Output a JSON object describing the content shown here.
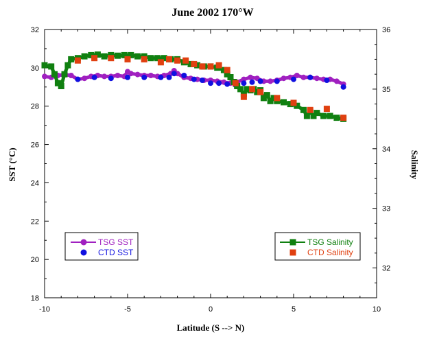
{
  "chart_data": {
    "type": "line",
    "title": "June 2002 170°W",
    "xlabel": "Latitude (S --> N)",
    "ylabel_left": "SST (°C)",
    "ylabel_right": "Salinity",
    "xlim": [
      -10,
      10
    ],
    "ylim_left": [
      18,
      32
    ],
    "ylim_right": [
      31.5,
      36
    ],
    "x_ticks": [
      -10,
      -5,
      0,
      5,
      10
    ],
    "y_left_ticks": [
      18,
      20,
      22,
      24,
      26,
      28,
      30,
      32
    ],
    "y_right_ticks": [
      32,
      33,
      34,
      35,
      36
    ],
    "grid": false,
    "legend_left": {
      "placement": "bottom-left",
      "entries": [
        {
          "label": "TSG SST",
          "color": "#a020c0",
          "marker": "circle",
          "line": true
        },
        {
          "label": "CTD SST",
          "color": "#1010e0",
          "marker": "circle",
          "line": false
        }
      ]
    },
    "legend_right": {
      "placement": "bottom-right",
      "entries": [
        {
          "label": "TSG Salinity",
          "color": "#108010",
          "marker": "square",
          "line": true
        },
        {
          "label": "CTD Salinity",
          "color": "#e04010",
          "marker": "square",
          "line": false
        }
      ]
    },
    "series": [
      {
        "name": "TSG SST",
        "axis": "left",
        "style": "line-markers",
        "marker": "circle",
        "color": "#a020c0",
        "x": [
          -10.0,
          -9.6,
          -9.2,
          -8.8,
          -8.4,
          -8.0,
          -7.6,
          -7.2,
          -6.8,
          -6.4,
          -6.0,
          -5.6,
          -5.2,
          -5.0,
          -4.8,
          -4.4,
          -4.0,
          -3.6,
          -3.2,
          -2.8,
          -2.4,
          -2.2,
          -2.0,
          -1.6,
          -1.2,
          -0.8,
          -0.4,
          0.0,
          0.4,
          0.8,
          1.2,
          1.6,
          2.0,
          2.4,
          2.8,
          3.2,
          3.6,
          4.0,
          4.4,
          4.8,
          5.2,
          5.6,
          6.0,
          6.4,
          6.8,
          7.2,
          7.6,
          8.0
        ],
        "y": [
          29.55,
          29.5,
          29.6,
          29.65,
          29.6,
          29.4,
          29.45,
          29.55,
          29.6,
          29.55,
          29.55,
          29.6,
          29.55,
          29.8,
          29.7,
          29.65,
          29.6,
          29.6,
          29.55,
          29.6,
          29.7,
          29.85,
          29.7,
          29.5,
          29.45,
          29.4,
          29.35,
          29.35,
          29.3,
          29.25,
          29.2,
          29.25,
          29.4,
          29.5,
          29.45,
          29.3,
          29.3,
          29.35,
          29.45,
          29.5,
          29.6,
          29.5,
          29.5,
          29.45,
          29.4,
          29.4,
          29.3,
          29.15
        ]
      },
      {
        "name": "CTD SST",
        "axis": "left",
        "style": "markers",
        "marker": "circle",
        "color": "#1010e0",
        "x": [
          -8.0,
          -7.0,
          -6.0,
          -5.0,
          -4.0,
          -3.0,
          -2.5,
          -2.2,
          -1.6,
          -1.0,
          -0.5,
          0.0,
          0.5,
          1.0,
          1.5,
          2.0,
          2.5,
          3.0,
          4.0,
          5.0,
          6.0,
          7.0,
          8.0
        ],
        "y": [
          29.4,
          29.5,
          29.45,
          29.5,
          29.5,
          29.5,
          29.5,
          29.7,
          29.6,
          29.4,
          29.35,
          29.2,
          29.2,
          29.15,
          29.1,
          29.2,
          29.25,
          29.3,
          29.3,
          29.4,
          29.5,
          29.35,
          29.0
        ]
      },
      {
        "name": "TSG Salinity",
        "axis": "right",
        "style": "line-markers",
        "marker": "square",
        "color": "#108010",
        "x": [
          -10.0,
          -9.6,
          -9.4,
          -9.2,
          -9.0,
          -8.8,
          -8.6,
          -8.4,
          -8.0,
          -7.6,
          -7.2,
          -6.8,
          -6.4,
          -6.0,
          -5.6,
          -5.2,
          -4.8,
          -4.4,
          -4.0,
          -3.6,
          -3.2,
          -2.8,
          -2.4,
          -2.0,
          -1.6,
          -1.2,
          -0.8,
          -0.4,
          0.0,
          0.4,
          0.8,
          1.0,
          1.2,
          1.4,
          1.6,
          1.8,
          2.0,
          2.2,
          2.4,
          2.6,
          2.8,
          3.0,
          3.2,
          3.4,
          3.6,
          3.8,
          4.0,
          4.4,
          4.8,
          5.2,
          5.6,
          5.8,
          6.0,
          6.2,
          6.4,
          6.8,
          7.2,
          7.6,
          8.0
        ],
        "y": [
          35.4,
          35.38,
          35.25,
          35.1,
          35.05,
          35.25,
          35.4,
          35.5,
          35.52,
          35.55,
          35.57,
          35.58,
          35.55,
          35.57,
          35.56,
          35.57,
          35.57,
          35.55,
          35.55,
          35.52,
          35.52,
          35.52,
          35.5,
          35.5,
          35.45,
          35.42,
          35.4,
          35.38,
          35.38,
          35.36,
          35.32,
          35.25,
          35.2,
          35.12,
          35.05,
          35.0,
          34.92,
          35.0,
          34.98,
          35.0,
          34.95,
          34.98,
          34.85,
          34.9,
          34.8,
          34.85,
          34.8,
          34.78,
          34.75,
          34.72,
          34.65,
          34.55,
          34.62,
          34.55,
          34.6,
          34.55,
          34.55,
          34.52,
          34.5
        ]
      },
      {
        "name": "CTD Salinity",
        "axis": "right",
        "style": "markers",
        "marker": "square",
        "color": "#e04010",
        "x": [
          -8.0,
          -7.0,
          -6.0,
          -5.0,
          -4.0,
          -3.0,
          -2.5,
          -2.0,
          -1.5,
          -1.0,
          -0.5,
          0.0,
          0.5,
          1.0,
          1.5,
          2.0,
          2.5,
          3.0,
          4.0,
          5.0,
          6.0,
          7.0,
          8.0
        ],
        "y": [
          35.48,
          35.52,
          35.52,
          35.5,
          35.5,
          35.45,
          35.5,
          35.48,
          35.48,
          35.42,
          35.38,
          35.38,
          35.4,
          35.32,
          35.1,
          34.87,
          35.0,
          34.95,
          34.85,
          34.77,
          34.65,
          34.67,
          34.52
        ]
      }
    ]
  }
}
